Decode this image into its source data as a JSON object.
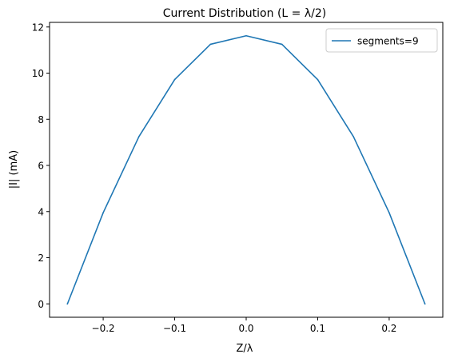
{
  "chart_data": {
    "type": "line",
    "title": "Current Distribution (L = λ/2)",
    "xlabel": "Z/λ",
    "ylabel": "|I| (mA)",
    "xlim": [
      -0.275,
      0.275
    ],
    "ylim": [
      -0.58,
      12.2
    ],
    "x_ticks": [
      -0.2,
      -0.1,
      0.0,
      0.1,
      0.2
    ],
    "x_tick_labels": [
      "−0.2",
      "−0.1",
      "0.0",
      "0.1",
      "0.2"
    ],
    "y_ticks": [
      0,
      2,
      4,
      6,
      8,
      10,
      12
    ],
    "y_tick_labels": [
      "0",
      "2",
      "4",
      "6",
      "8",
      "10",
      "12"
    ],
    "grid": false,
    "legend_position": "top-right",
    "series": [
      {
        "name": "segments=9",
        "color": "#1f77b4",
        "x": [
          -0.25,
          -0.2,
          -0.15,
          -0.1,
          -0.05,
          0.0,
          0.05,
          0.1,
          0.15,
          0.2,
          0.25
        ],
        "y": [
          0.0,
          3.95,
          7.25,
          9.72,
          11.25,
          11.62,
          11.25,
          9.72,
          7.25,
          3.95,
          0.0
        ]
      }
    ]
  }
}
